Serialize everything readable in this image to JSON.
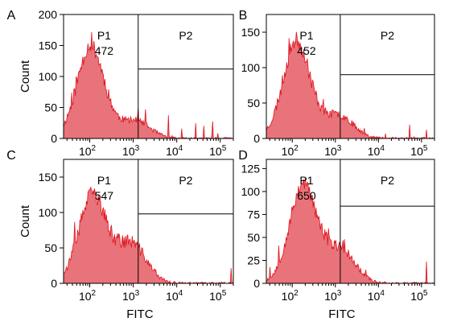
{
  "colors": {
    "fill": "#e8737a",
    "stroke": "#e0101c",
    "axis": "#000000",
    "gate": "#000000"
  },
  "chart_data": [
    {
      "type": "histogram",
      "panel_label": "A",
      "xlabel": "",
      "ylabel": "Count",
      "x_scale": "log",
      "xlim": [
        25,
        200000
      ],
      "ylim": [
        0,
        200
      ],
      "yticks": [
        0,
        50,
        100,
        150,
        200
      ],
      "xticks": [
        {
          "value": 100,
          "base": "10",
          "exp": "2"
        },
        {
          "value": 1000,
          "base": "10",
          "exp": "3"
        },
        {
          "value": 10000,
          "base": "10",
          "exp": "4"
        },
        {
          "value": 100000,
          "base": "10",
          "exp": "5"
        }
      ],
      "peak_x": 100,
      "peak_y": 150,
      "shoulder_x": 1100,
      "shoulder_y": 28,
      "noise": 24,
      "seed": 11,
      "gate_x": 1300,
      "gate_p2_top": 112,
      "gates": [
        {
          "name": "P1",
          "value": "472"
        },
        {
          "name": "P2",
          "value": ""
        }
      ]
    },
    {
      "type": "histogram",
      "panel_label": "B",
      "xlabel": "",
      "ylabel": "",
      "x_scale": "log",
      "xlim": [
        25,
        200000
      ],
      "ylim": [
        0,
        175
      ],
      "yticks": [
        0,
        50,
        100,
        150
      ],
      "xticks": [
        {
          "value": 100,
          "base": "10",
          "exp": "2"
        },
        {
          "value": 1000,
          "base": "10",
          "exp": "3"
        },
        {
          "value": 10000,
          "base": "10",
          "exp": "4"
        },
        {
          "value": 100000,
          "base": "10",
          "exp": "5"
        }
      ],
      "peak_x": 120,
      "peak_y": 138,
      "shoulder_x": 1200,
      "shoulder_y": 32,
      "noise": 22,
      "seed": 23,
      "gate_x": 1300,
      "gate_p2_top": 90,
      "gates": [
        {
          "name": "P1",
          "value": "452"
        },
        {
          "name": "P2",
          "value": ""
        }
      ]
    },
    {
      "type": "histogram",
      "panel_label": "C",
      "xlabel": "FITC",
      "ylabel": "Count",
      "x_scale": "log",
      "xlim": [
        25,
        200000
      ],
      "ylim": [
        0,
        175
      ],
      "yticks": [
        0,
        50,
        100,
        150
      ],
      "xticks": [
        {
          "value": 100,
          "base": "10",
          "exp": "2"
        },
        {
          "value": 1000,
          "base": "10",
          "exp": "3"
        },
        {
          "value": 10000,
          "base": "10",
          "exp": "4"
        },
        {
          "value": 100000,
          "base": "10",
          "exp": "5"
        }
      ],
      "peak_x": 110,
      "peak_y": 125,
      "shoulder_x": 900,
      "shoulder_y": 55,
      "noise": 22,
      "seed": 37,
      "gate_x": 1300,
      "gate_p2_top": 98,
      "gates": [
        {
          "name": "P1",
          "value": "547"
        },
        {
          "name": "P2",
          "value": ""
        }
      ]
    },
    {
      "type": "histogram",
      "panel_label": "D",
      "xlabel": "FITC",
      "ylabel": "",
      "x_scale": "log",
      "xlim": [
        25,
        200000
      ],
      "ylim": [
        0,
        135
      ],
      "yticks": [
        0,
        25,
        50,
        75,
        100,
        125
      ],
      "xticks": [
        {
          "value": 100,
          "base": "10",
          "exp": "2"
        },
        {
          "value": 1000,
          "base": "10",
          "exp": "3"
        },
        {
          "value": 10000,
          "base": "10",
          "exp": "4"
        },
        {
          "value": 100000,
          "base": "10",
          "exp": "5"
        }
      ],
      "peak_x": 170,
      "peak_y": 108,
      "shoulder_x": 1300,
      "shoulder_y": 36,
      "noise": 16,
      "seed": 53,
      "gate_x": 1300,
      "gate_p2_top": 84,
      "gates": [
        {
          "name": "P1",
          "value": "650"
        },
        {
          "name": "P2",
          "value": ""
        }
      ]
    }
  ]
}
